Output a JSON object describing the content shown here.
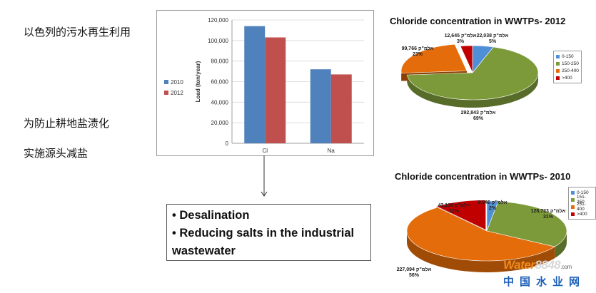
{
  "left_text": {
    "line1": "以色列的污水再生利用",
    "line2": "为防止耕地盐渍化",
    "line3": "实施源头减盐"
  },
  "bullets": {
    "item1": "• Desalination",
    "item2": "• Reducing salts in the industrial wastewater"
  },
  "colors": {
    "blue": "#4f81bd",
    "red": "#c0504d",
    "green": "#7d9a3a",
    "orange": "#e46c0a",
    "darkred": "#c00000",
    "light_blue": "#4f8fd6"
  },
  "watermark": {
    "brand_a": "Water",
    "brand_b": "8848",
    "tld": ".com",
    "cn": "中国水业网"
  },
  "chart_data": [
    {
      "type": "bar",
      "categories": [
        "Cl",
        "Na"
      ],
      "series": [
        {
          "name": "2010",
          "values": [
            114000,
            72000
          ],
          "color": "#4f81bd"
        },
        {
          "name": "2012",
          "values": [
            103000,
            67000
          ],
          "color": "#c0504d"
        }
      ],
      "ylabel": "Load (ton/year)",
      "ylim": [
        0,
        120000
      ],
      "yticks": [
        0,
        20000,
        40000,
        60000,
        80000,
        100000,
        120000
      ],
      "ytick_labels": [
        "0",
        "20,000",
        "40,000",
        "60,000",
        "80,000",
        "100,000",
        "120,000"
      ],
      "legend": "left"
    },
    {
      "type": "pie",
      "title": "Chloride concentration in WWTPs- 2012",
      "legend_labels": [
        "0-150",
        "150-250",
        "250-400",
        ">400"
      ],
      "values": [
        22038,
        292843,
        99766,
        12645
      ],
      "value_labels": [
        "22,038",
        "292,843",
        "99,766",
        "12,645"
      ],
      "percent_labels": [
        "5%",
        "69%",
        "23%",
        "3%"
      ],
      "unit": "אלמ\"ק",
      "colors": [
        "#4f8fd6",
        "#7d9a3a",
        "#e46c0a",
        "#c00000"
      ]
    },
    {
      "type": "pie",
      "title": "Chloride concentration in WWTPs- 2010",
      "legend_labels": [
        "0-150",
        "151-250",
        "251-400",
        ">400"
      ],
      "values": [
        9346,
        128723,
        227094,
        43136
      ],
      "value_labels": [
        "9,346",
        "128,723",
        "227,094",
        "43,136"
      ],
      "percent_labels": [
        "2%",
        "31%",
        "56%",
        "11%"
      ],
      "unit": "אלמ\"ק",
      "colors": [
        "#4f8fd6",
        "#7d9a3a",
        "#e46c0a",
        "#c00000"
      ]
    }
  ]
}
